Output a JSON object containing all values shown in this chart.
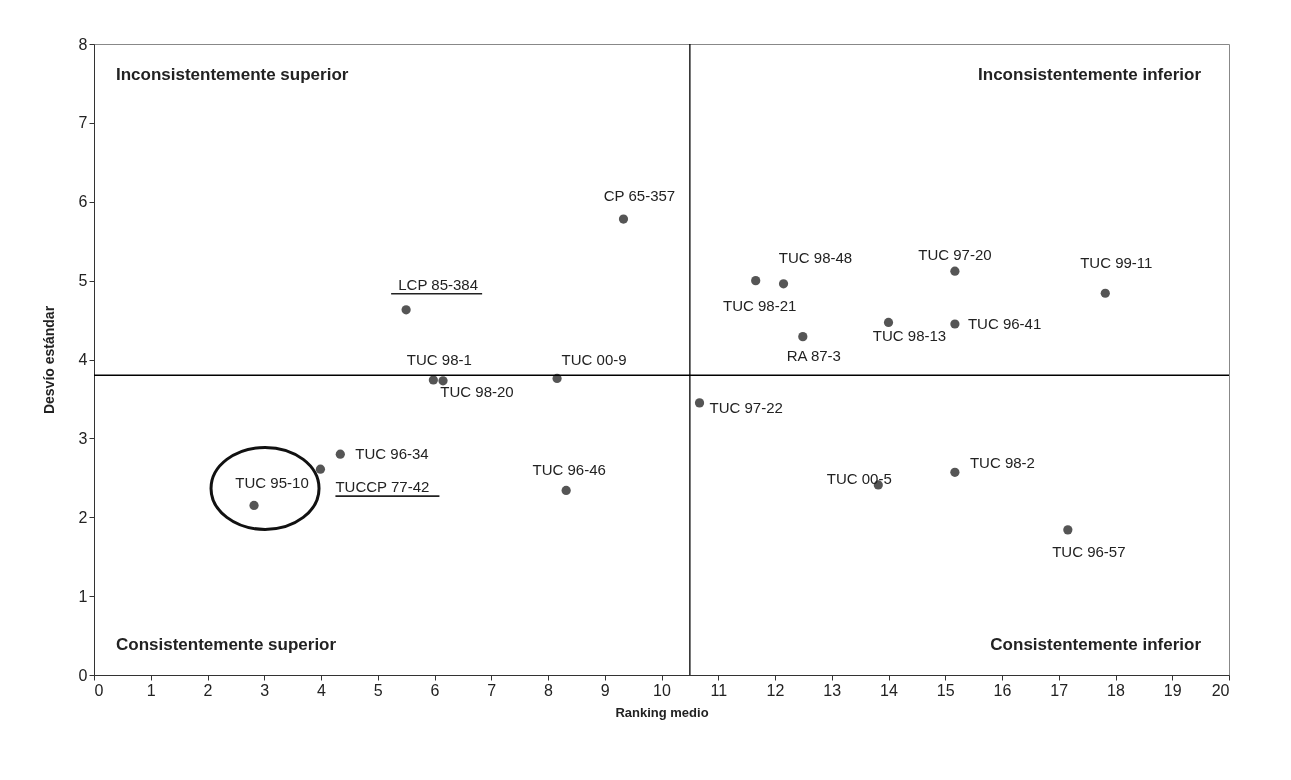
{
  "chart_data": {
    "type": "scatter",
    "xlabel": "Ranking medio",
    "ylabel": "Desvío estándar",
    "x": [
      9.33,
      5.5,
      5.98,
      6.15,
      8.16,
      10.67,
      4.34,
      3.99,
      2.82,
      8.32,
      11.66,
      12.15,
      15.17,
      17.82,
      14.0,
      15.17,
      12.49,
      13.82,
      15.17,
      17.16
    ],
    "series": [
      {
        "color": "#555555",
        "values": [
          5.78,
          4.63,
          3.74,
          3.73,
          3.76,
          3.45,
          2.8,
          2.61,
          2.15,
          2.34,
          5.0,
          4.96,
          5.12,
          4.84,
          4.47,
          4.45,
          4.29,
          2.41,
          2.57,
          1.84
        ]
      }
    ],
    "xlim": [
      0,
      20
    ],
    "xticks": [
      0,
      1,
      2,
      3,
      4,
      5,
      6,
      7,
      8,
      9,
      10,
      11,
      12,
      13,
      14,
      15,
      16,
      17,
      18,
      19,
      20
    ],
    "ylim": [
      0,
      8
    ],
    "yticks": [
      0,
      1,
      2,
      3,
      4,
      5,
      6,
      7,
      8
    ],
    "grid": false,
    "legend": false,
    "marker": "circle",
    "ref_lines": [
      {
        "axis": "x",
        "value": 10.5,
        "color": "#000000"
      },
      {
        "axis": "y",
        "value": 3.8,
        "color": "#000000"
      }
    ],
    "annotations": [
      {
        "text": "CP 65-357",
        "x": 9.33,
        "y": 5.78
      },
      {
        "text": "LCP 85-384",
        "x": 5.5,
        "y": 4.63
      },
      {
        "text": "TUC 98-1",
        "x": 5.98,
        "y": 3.74
      },
      {
        "text": "TUC 98-20",
        "x": 6.15,
        "y": 3.73
      },
      {
        "text": "TUC 00-9",
        "x": 8.16,
        "y": 3.76
      },
      {
        "text": "TUC 97-22",
        "x": 10.67,
        "y": 3.45
      },
      {
        "text": "TUC 96-34",
        "x": 4.34,
        "y": 2.8
      },
      {
        "text": "TUCCP 77-42",
        "x": 3.99,
        "y": 2.61
      },
      {
        "text": "TUC 95-10",
        "x": 2.82,
        "y": 2.15
      },
      {
        "text": "TUC 96-46",
        "x": 8.32,
        "y": 2.34
      },
      {
        "text": "TUC 98-21",
        "x": 11.66,
        "y": 5.0
      },
      {
        "text": "TUC 98-48",
        "x": 12.15,
        "y": 4.96
      },
      {
        "text": "TUC 97-20",
        "x": 15.17,
        "y": 5.12
      },
      {
        "text": "TUC 99-11",
        "x": 17.82,
        "y": 4.84
      },
      {
        "text": "TUC 98-13",
        "x": 14.0,
        "y": 4.47
      },
      {
        "text": "TUC 96-41",
        "x": 15.17,
        "y": 4.45
      },
      {
        "text": "RA 87-3",
        "x": 12.49,
        "y": 4.29
      },
      {
        "text": "TUC 00-5",
        "x": 13.82,
        "y": 2.41
      },
      {
        "text": "TUC 98-2",
        "x": 15.17,
        "y": 2.57
      },
      {
        "text": "TUC 96-57",
        "x": 17.16,
        "y": 1.84
      },
      "Inconsistentemente superior",
      "Inconsistentemente inferior",
      "Consistentemente superior",
      "Consistentemente inferior"
    ]
  }
}
